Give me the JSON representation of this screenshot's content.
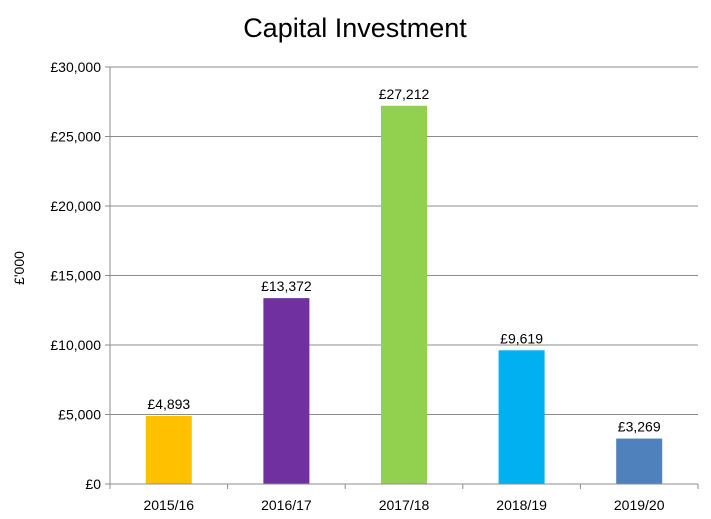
{
  "chart_data": {
    "type": "bar",
    "title": "Capital Investment",
    "xlabel": "",
    "ylabel": "£'000",
    "categories": [
      "2015/16",
      "2016/17",
      "2017/18",
      "2018/19",
      "2019/20"
    ],
    "values": [
      4893,
      13372,
      27212,
      9619,
      3269
    ],
    "data_labels": [
      "£4,893",
      "£13,372",
      "£27,212",
      "£9,619",
      "£3,269"
    ],
    "bar_colors": [
      "#FFC000",
      "#7030A0",
      "#92D050",
      "#00B0F0",
      "#4F81BD"
    ],
    "ylim": [
      0,
      30000
    ],
    "y_ticks": [
      0,
      5000,
      10000,
      15000,
      20000,
      25000,
      30000
    ],
    "y_tick_labels": [
      "£0",
      "£5,000",
      "£10,000",
      "£15,000",
      "£20,000",
      "£25,000",
      "£30,000"
    ],
    "grid": true,
    "legend": "none"
  }
}
